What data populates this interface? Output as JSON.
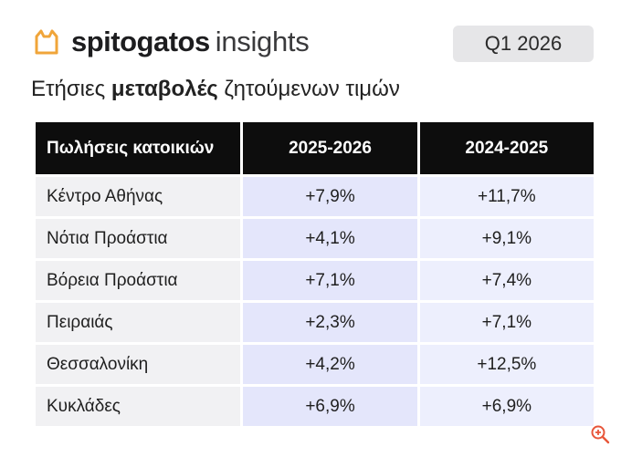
{
  "header": {
    "brand": "spitogatos",
    "brand_suffix": "insights",
    "quarter": "Q1 2026"
  },
  "subtitle": {
    "before": "Ετήσιες ",
    "bold": "μεταβολές",
    "after": " ζητούμενων τιμών"
  },
  "table": {
    "headers": [
      "Πωλήσεις κατοικιών",
      "2025-2026",
      "2024-2025"
    ],
    "rows": [
      {
        "region": "Κέντρο Αθήνας",
        "v1": "+7,9%",
        "v2": "+11,7%"
      },
      {
        "region": "Νότια Προάστια",
        "v1": "+4,1%",
        "v2": "+9,1%"
      },
      {
        "region": "Βόρεια Προάστια",
        "v1": "+7,1%",
        "v2": "+7,4%"
      },
      {
        "region": "Πειραιάς",
        "v1": "+2,3%",
        "v2": "+7,1%"
      },
      {
        "region": "Θεσσαλονίκη",
        "v1": "+4,2%",
        "v2": "+12,5%"
      },
      {
        "region": "Κυκλάδες",
        "v1": "+6,9%",
        "v2": "+6,9%"
      }
    ]
  },
  "colors": {
    "accent_logo": "#f0a53a",
    "header_bg": "#0d0d0d",
    "col1_bg": "#e4e6fb",
    "col2_bg": "#edeffd",
    "region_bg": "#f1f1f3",
    "badge_bg": "#e6e6e8"
  },
  "icons": {
    "logo": "cat-head-icon",
    "corner": "zoom-icon"
  }
}
